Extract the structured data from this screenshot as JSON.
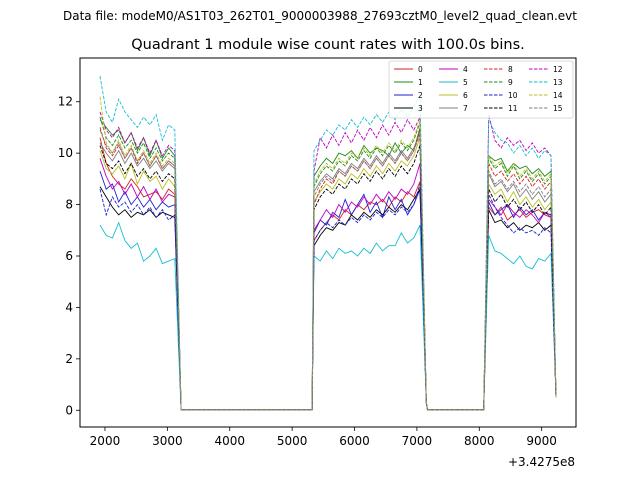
{
  "figure": {
    "suptitle": "Data file: modeM0/AS1T03_262T01_9000003988_27693cztM0_level2_quad_clean.evt"
  },
  "chart_data": {
    "type": "line",
    "title": "Quadrant 1 module wise count rates with 100.0s bins.",
    "xlabel": "",
    "ylabel": "",
    "x_offset_label": "+3.4275e8",
    "xlim": [
      1600,
      9550
    ],
    "ylim": [
      -0.65,
      13.7
    ],
    "xticks": [
      2000,
      3000,
      4000,
      5000,
      6000,
      7000,
      8000,
      9000
    ],
    "xtick_labels": [
      "2000",
      "3000",
      "4000",
      "5000",
      "6000",
      "7000",
      "8000",
      "9000"
    ],
    "yticks": [
      0,
      2,
      4,
      6,
      8,
      10,
      12
    ],
    "ytick_labels": [
      "0",
      "2",
      "4",
      "6",
      "8",
      "10",
      "12"
    ],
    "legend_position": "top-right",
    "gti_segments": [
      {
        "start": 1920,
        "step": 100,
        "n": 13
      },
      {
        "start": 5350,
        "step": 100,
        "n": 18
      },
      {
        "start": 8150,
        "step": 100,
        "n": 11
      }
    ],
    "gap_x": [
      3220,
      3320,
      3420,
      3520,
      3620,
      3720,
      3820,
      3920,
      4020,
      4120,
      4220,
      4320,
      4420,
      4520,
      4620,
      4720,
      4820,
      4920,
      5020,
      5120,
      5220,
      5320
    ],
    "gap2_x": [
      7170,
      7270,
      7370,
      7470,
      7570,
      7670,
      7770,
      7870,
      7970,
      8070
    ],
    "series": [
      {
        "name": "0",
        "color": "#d62020",
        "dash": "solid",
        "seg1": [
          10.6,
          9.6,
          9.1,
          8.8,
          8.6,
          9.0,
          8.7,
          8.3,
          8.4,
          8.5,
          8.2,
          8.6,
          8.4
        ],
        "seg2": [
          6.6,
          7.0,
          7.3,
          7.6,
          7.4,
          7.8,
          7.6,
          8.0,
          7.8,
          8.1,
          8.0,
          8.2,
          7.9,
          8.3,
          8.1,
          8.5,
          8.3,
          8.9
        ],
        "seg3": [
          7.9,
          7.6,
          7.9,
          7.4,
          7.6,
          7.8,
          7.5,
          7.7,
          7.8,
          7.6,
          7.5
        ]
      },
      {
        "name": "1",
        "color": "#1e8b1e",
        "dash": "solid",
        "seg1": [
          11.3,
          11.0,
          10.7,
          10.9,
          10.4,
          10.8,
          10.1,
          10.6,
          9.9,
          10.5,
          9.8,
          10.2,
          9.9
        ],
        "seg2": [
          9.1,
          9.5,
          9.8,
          9.6,
          10.0,
          9.9,
          10.1,
          9.8,
          10.3,
          10.0,
          10.2,
          10.1,
          9.9,
          10.4,
          10.0,
          10.3,
          10.1,
          11.0
        ],
        "seg3": [
          9.9,
          9.7,
          9.8,
          9.3,
          9.6,
          9.4,
          9.5,
          9.2,
          9.4,
          9.1,
          9.3
        ]
      },
      {
        "name": "2",
        "color": "#1f1fd6",
        "dash": "solid",
        "seg1": [
          9.3,
          8.6,
          8.8,
          8.1,
          8.5,
          8.0,
          8.3,
          7.9,
          8.2,
          7.8,
          8.1,
          7.9,
          8.0
        ],
        "seg2": [
          6.9,
          7.4,
          7.2,
          7.7,
          7.5,
          8.2,
          7.6,
          8.0,
          8.4,
          7.7,
          8.1,
          7.5,
          8.3,
          7.8,
          8.2,
          7.6,
          8.0,
          8.6
        ],
        "seg3": [
          8.1,
          7.6,
          7.8,
          8.0,
          7.5,
          7.9,
          7.6,
          7.8,
          7.4,
          7.7,
          7.6
        ]
      },
      {
        "name": "3",
        "color": "#000000",
        "dash": "solid",
        "seg1": [
          8.7,
          8.3,
          7.9,
          7.6,
          7.8,
          7.5,
          7.7,
          7.6,
          7.8,
          7.5,
          7.7,
          7.6,
          7.5
        ],
        "seg2": [
          6.4,
          6.8,
          7.1,
          7.0,
          7.3,
          7.2,
          7.6,
          7.4,
          7.7,
          7.5,
          7.8,
          7.6,
          7.9,
          7.7,
          8.0,
          7.8,
          8.2,
          8.6
        ],
        "seg3": [
          7.8,
          7.3,
          7.4,
          7.1,
          7.3,
          7.0,
          7.2,
          7.1,
          7.3,
          7.0,
          7.2
        ]
      },
      {
        "name": "4",
        "color": "#c000c0",
        "dash": "solid",
        "seg1": [
          9.8,
          9.1,
          8.6,
          8.9,
          8.4,
          8.8,
          8.3,
          8.7,
          8.2,
          8.6,
          8.1,
          8.4,
          8.3
        ],
        "seg2": [
          7.0,
          7.4,
          7.8,
          7.5,
          8.0,
          7.7,
          8.1,
          7.9,
          8.3,
          8.0,
          8.4,
          8.1,
          8.5,
          8.2,
          8.6,
          8.4,
          8.8,
          9.6
        ],
        "seg3": [
          8.2,
          7.9,
          7.6,
          8.0,
          7.7,
          7.5,
          7.8,
          7.6,
          7.3,
          7.7,
          7.5
        ]
      },
      {
        "name": "5",
        "color": "#17becf",
        "dash": "solid",
        "seg1": [
          7.2,
          6.8,
          6.7,
          7.3,
          6.6,
          6.3,
          6.5,
          5.8,
          6.0,
          6.3,
          5.7,
          5.8,
          5.9
        ],
        "seg2": [
          6.0,
          5.8,
          6.2,
          5.9,
          6.3,
          6.1,
          6.2,
          6.0,
          6.3,
          6.1,
          6.5,
          6.2,
          6.4,
          6.4,
          6.9,
          6.5,
          6.7,
          7.2
        ],
        "seg3": [
          6.8,
          6.2,
          6.1,
          5.9,
          5.7,
          6.0,
          5.6,
          5.5,
          5.9,
          5.8,
          6.1
        ]
      },
      {
        "name": "6",
        "color": "#bcbd22",
        "dash": "solid",
        "seg1": [
          10.1,
          9.4,
          9.2,
          9.5,
          9.0,
          9.6,
          8.8,
          9.3,
          8.9,
          9.1,
          8.6,
          9.0,
          8.7
        ],
        "seg2": [
          8.1,
          8.5,
          8.8,
          8.6,
          9.0,
          8.8,
          9.2,
          9.0,
          9.4,
          9.1,
          9.5,
          9.2,
          9.6,
          9.3,
          9.7,
          9.5,
          9.9,
          10.6
        ],
        "seg3": [
          8.8,
          8.4,
          8.6,
          8.1,
          8.5,
          8.0,
          8.3,
          7.9,
          8.2,
          7.8,
          8.1
        ]
      },
      {
        "name": "7",
        "color": "#7f7f7f",
        "dash": "solid",
        "seg1": [
          10.4,
          10.0,
          9.7,
          10.1,
          9.6,
          10.0,
          9.5,
          9.8,
          9.4,
          9.7,
          9.3,
          9.6,
          9.4
        ],
        "seg2": [
          8.5,
          8.9,
          9.2,
          9.0,
          9.4,
          9.2,
          9.6,
          9.4,
          9.8,
          9.5,
          9.9,
          9.6,
          10.0,
          9.7,
          10.1,
          9.8,
          10.2,
          10.8
        ],
        "seg3": [
          9.2,
          8.7,
          8.9,
          8.5,
          8.8,
          8.3,
          8.6,
          8.2,
          8.5,
          8.1,
          8.4
        ]
      },
      {
        "name": "8",
        "color": "#d62020",
        "dash": "dash",
        "seg1": [
          11.0,
          10.2,
          9.9,
          10.3,
          9.8,
          10.2,
          9.6,
          10.0,
          9.5,
          9.9,
          9.4,
          9.7,
          9.5
        ],
        "seg2": [
          8.0,
          8.6,
          9.0,
          8.8,
          9.3,
          9.1,
          9.5,
          9.3,
          9.7,
          9.4,
          9.8,
          9.5,
          9.9,
          9.6,
          10.0,
          9.7,
          10.1,
          10.9
        ],
        "seg3": [
          9.6,
          9.1,
          9.3,
          8.9,
          9.2,
          8.8,
          9.1,
          8.7,
          9.0,
          8.6,
          8.9
        ]
      },
      {
        "name": "9",
        "color": "#1e8b1e",
        "dash": "dash",
        "seg1": [
          11.4,
          10.6,
          10.3,
          10.7,
          10.2,
          10.5,
          10.0,
          10.4,
          9.8,
          10.2,
          9.7,
          10.0,
          9.8
        ],
        "seg2": [
          8.7,
          9.2,
          9.5,
          9.3,
          9.7,
          9.5,
          9.9,
          9.7,
          10.1,
          9.8,
          10.2,
          9.9,
          10.3,
          10.0,
          10.4,
          10.1,
          10.5,
          11.2
        ],
        "seg3": [
          9.8,
          9.4,
          9.6,
          9.1,
          9.5,
          9.0,
          9.3,
          8.9,
          9.2,
          8.8,
          9.1
        ]
      },
      {
        "name": "10",
        "color": "#1f1fd6",
        "dash": "dash",
        "seg1": [
          8.6,
          7.6,
          8.3,
          7.9,
          8.1,
          7.7,
          8.0,
          7.6,
          7.9,
          7.5,
          7.8,
          7.4,
          7.6
        ],
        "seg2": [
          6.6,
          7.0,
          7.3,
          7.1,
          7.4,
          7.2,
          7.5,
          7.3,
          7.6,
          7.4,
          7.7,
          7.5,
          7.8,
          7.6,
          7.9,
          7.7,
          8.0,
          8.8
        ],
        "seg3": [
          8.4,
          7.9,
          7.5,
          7.2,
          6.9,
          7.1,
          6.9,
          7.0,
          6.8,
          7.1,
          6.9
        ]
      },
      {
        "name": "11",
        "color": "#000000",
        "dash": "dash",
        "seg1": [
          10.3,
          9.6,
          9.4,
          9.7,
          9.2,
          9.6,
          9.1,
          9.4,
          9.0,
          9.3,
          8.9,
          9.2,
          9.0
        ],
        "seg2": [
          7.8,
          8.3,
          8.6,
          8.4,
          8.8,
          8.6,
          9.0,
          8.8,
          9.2,
          8.9,
          9.3,
          9.0,
          9.4,
          9.1,
          9.5,
          9.2,
          9.6,
          10.3
        ],
        "seg3": [
          8.6,
          8.1,
          8.4,
          7.9,
          8.2,
          7.8,
          8.1,
          7.7,
          8.0,
          7.6,
          7.9
        ]
      },
      {
        "name": "12",
        "color": "#c000c0",
        "dash": "dash",
        "seg1": [
          11.6,
          10.9,
          10.6,
          11.0,
          10.4,
          10.8,
          10.2,
          10.6,
          10.0,
          10.5,
          9.9,
          10.3,
          10.1
        ],
        "seg2": [
          9.3,
          10.6,
          10.2,
          10.7,
          10.3,
          10.8,
          10.4,
          10.9,
          10.5,
          11.0,
          10.6,
          11.1,
          10.7,
          11.2,
          10.8,
          11.3,
          10.9,
          11.4
        ],
        "seg3": [
          11.5,
          10.5,
          10.2,
          10.6,
          10.3,
          10.5,
          10.1,
          10.4,
          10.0,
          10.2,
          9.9
        ]
      },
      {
        "name": "13",
        "color": "#17becf",
        "dash": "dash",
        "seg1": [
          13.0,
          11.6,
          11.2,
          12.1,
          11.6,
          11.3,
          11.0,
          11.4,
          11.1,
          11.5,
          10.5,
          11.1,
          10.9
        ],
        "seg2": [
          10.1,
          10.5,
          10.9,
          10.7,
          11.1,
          10.9,
          11.3,
          11.0,
          11.4,
          11.1,
          11.5,
          11.2,
          11.6,
          11.3,
          11.7,
          11.4,
          11.8,
          12.3
        ],
        "seg3": [
          11.3,
          10.8,
          10.5,
          10.4,
          10.0,
          10.3,
          9.9,
          10.2,
          9.8,
          10.1,
          9.9
        ]
      },
      {
        "name": "14",
        "color": "#bcbd22",
        "dash": "dash",
        "seg1": [
          12.2,
          10.4,
          10.0,
          10.5,
          9.9,
          10.3,
          9.7,
          10.1,
          9.6,
          10.0,
          9.5,
          9.8,
          9.6
        ],
        "seg2": [
          8.8,
          9.3,
          9.6,
          9.4,
          9.8,
          9.6,
          10.0,
          9.8,
          10.2,
          9.9,
          10.3,
          10.0,
          10.4,
          10.1,
          10.5,
          10.2,
          10.6,
          11.3
        ],
        "seg3": [
          9.9,
          9.5,
          9.7,
          9.2,
          9.6,
          9.1,
          9.4,
          9.0,
          9.3,
          8.9,
          9.2
        ]
      },
      {
        "name": "15",
        "color": "#7f7f7f",
        "dash": "dash",
        "seg1": [
          10.9,
          10.3,
          10.0,
          10.4,
          9.8,
          10.2,
          9.7,
          10.0,
          9.5,
          9.9,
          9.4,
          9.7,
          9.5
        ],
        "seg2": [
          8.3,
          8.8,
          9.1,
          8.9,
          9.3,
          9.1,
          9.5,
          9.3,
          9.7,
          9.4,
          9.8,
          9.5,
          9.9,
          9.6,
          10.0,
          9.7,
          10.1,
          10.7
        ],
        "seg3": [
          9.3,
          8.8,
          9.0,
          8.6,
          8.9,
          8.5,
          8.8,
          8.4,
          8.7,
          8.3,
          8.6
        ]
      }
    ],
    "end_values": {
      "after_seg1": 0.02,
      "after_seg2": 0.3,
      "after_seg3": 0.5
    }
  }
}
